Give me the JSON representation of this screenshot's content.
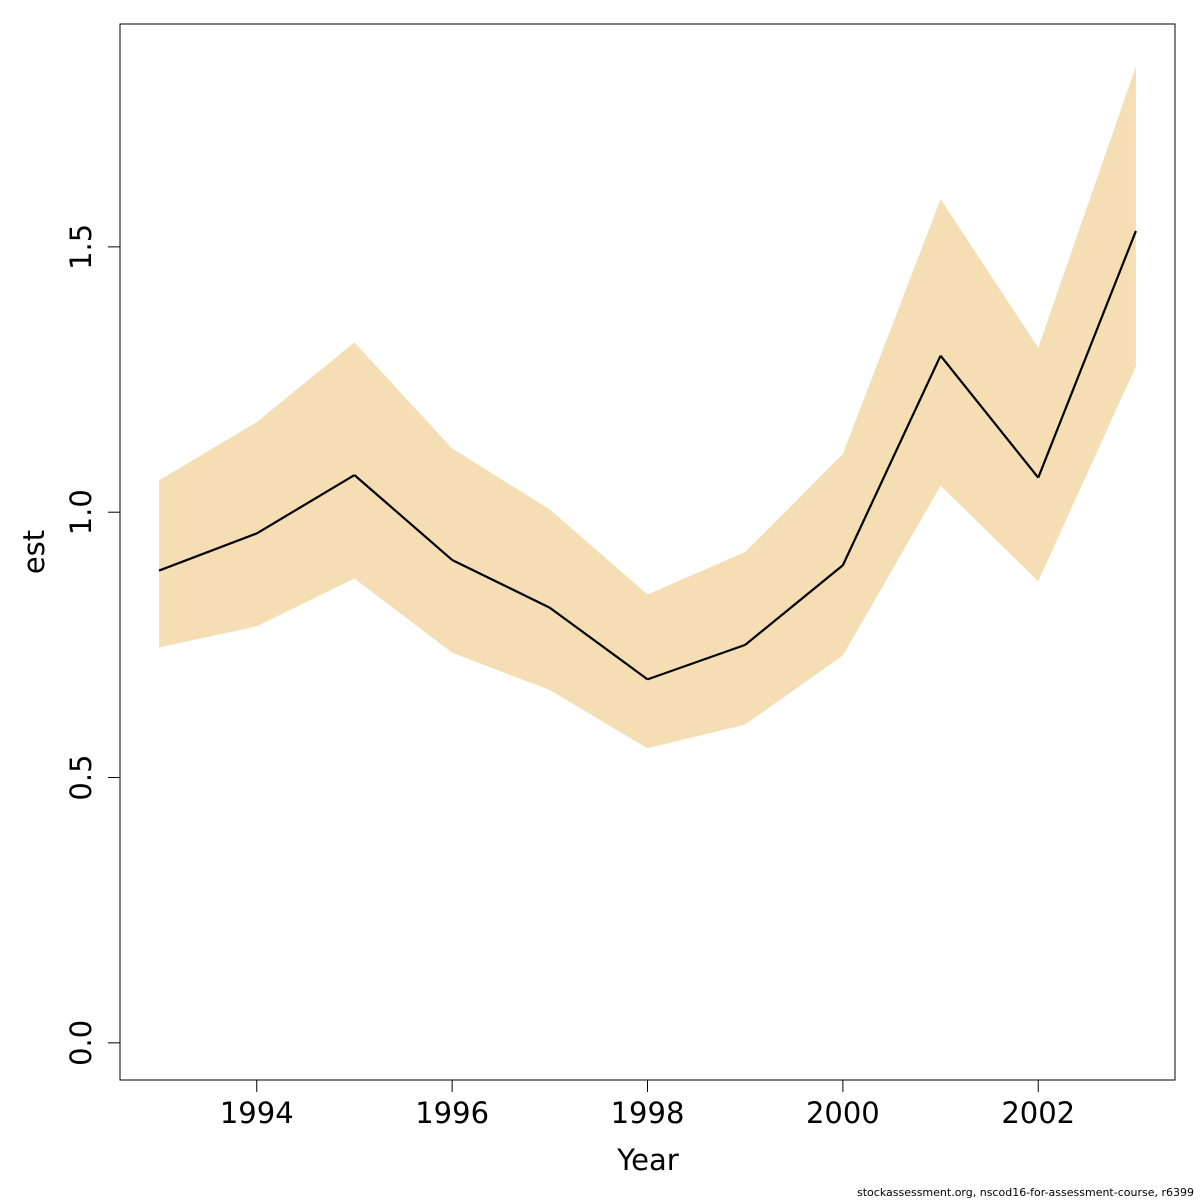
{
  "chart_data": {
    "type": "line",
    "xlabel": "Year",
    "ylabel": "est",
    "xlim": [
      1992.6,
      2003.4
    ],
    "ylim": [
      -0.07,
      1.92
    ],
    "x_ticks": [
      1994,
      1996,
      1998,
      2000,
      2002
    ],
    "x_tick_labels": [
      "1994",
      "1996",
      "1998",
      "2000",
      "2002"
    ],
    "y_ticks": [
      0.0,
      0.5,
      1.0,
      1.5
    ],
    "y_tick_labels": [
      "0.0",
      "0.5",
      "1.0",
      "1.5"
    ],
    "band_color": "#f5deb3",
    "line_color": "#000000",
    "grid": false,
    "series": [
      {
        "x": [
          1993,
          1994,
          1995,
          1996,
          1997,
          1998,
          1999,
          2000,
          2001,
          2002,
          2003
        ],
        "values": [
          0.89,
          0.96,
          1.07,
          0.91,
          0.82,
          0.685,
          0.75,
          0.9,
          1.295,
          1.065,
          1.53
        ],
        "lower": [
          0.745,
          0.785,
          0.875,
          0.735,
          0.665,
          0.555,
          0.6,
          0.73,
          1.05,
          0.87,
          1.275
        ],
        "upper": [
          1.06,
          1.17,
          1.32,
          1.12,
          1.005,
          0.845,
          0.925,
          1.11,
          1.59,
          1.31,
          1.84
        ]
      }
    ]
  },
  "footer": "stockassessment.org, nscod16-for-assessment-course, r6399"
}
